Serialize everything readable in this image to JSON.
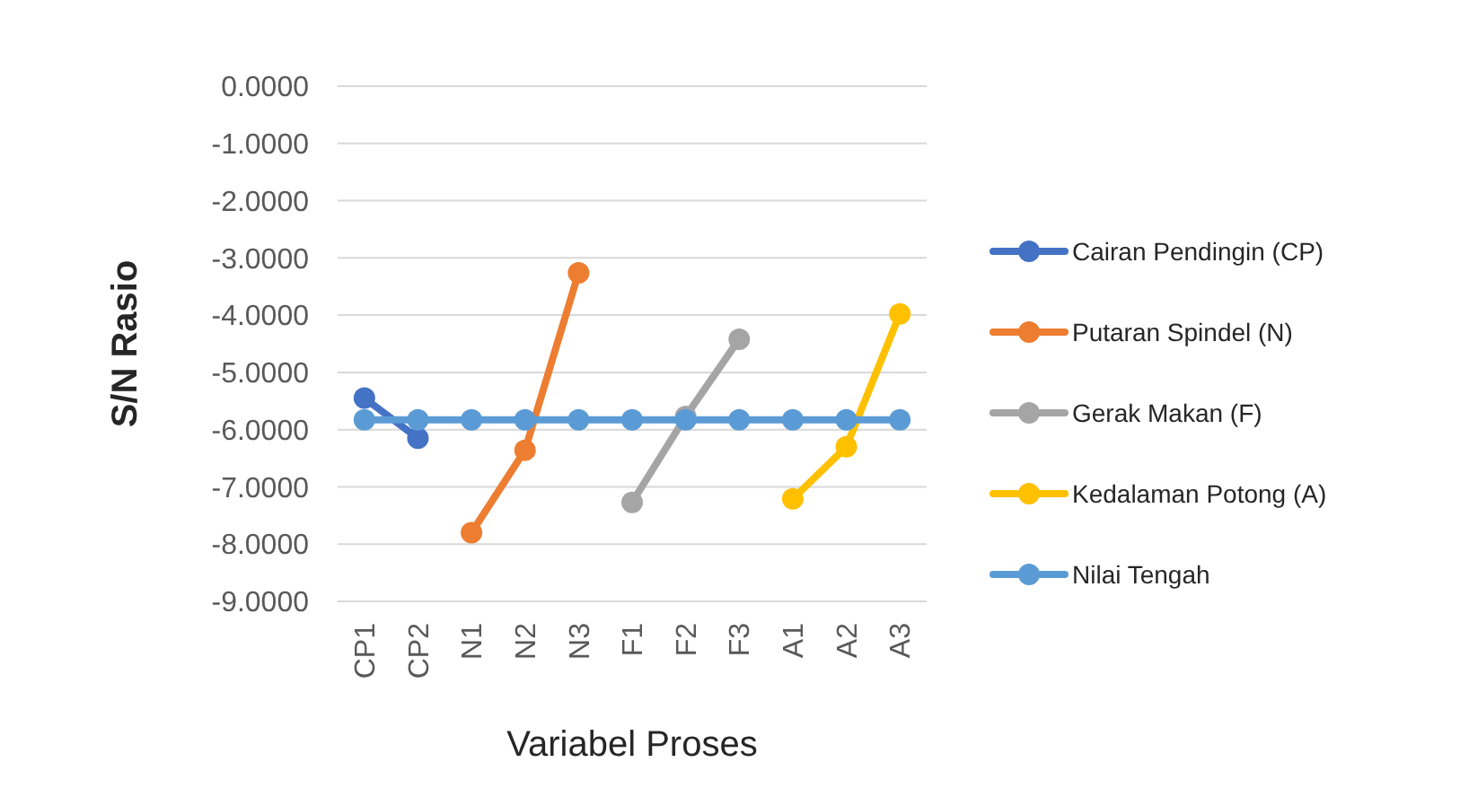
{
  "chart_data": {
    "type": "line",
    "xlabel": "Variabel Proses",
    "ylabel": "S/N Rasio",
    "categories": [
      "CP1",
      "CP2",
      "N1",
      "N2",
      "N3",
      "F1",
      "F2",
      "F3",
      "A1",
      "A2",
      "A3"
    ],
    "series": [
      {
        "name": "Cairan Pendingin (CP)",
        "color": "#4472c4",
        "values": [
          -5.45,
          -6.15,
          null,
          null,
          null,
          null,
          null,
          null,
          null,
          null,
          null
        ]
      },
      {
        "name": "Putaran Spindel (N)",
        "color": "#ed7d31",
        "values": [
          null,
          null,
          -7.8,
          -6.36,
          -3.26,
          null,
          null,
          null,
          null,
          null,
          null
        ]
      },
      {
        "name": "Gerak Makan (F)",
        "color": "#a5a5a5",
        "values": [
          null,
          null,
          null,
          null,
          null,
          -7.27,
          -5.77,
          -4.42,
          null,
          null,
          null
        ]
      },
      {
        "name": "Kedalaman Potong (A)",
        "color": "#ffc000",
        "values": [
          null,
          null,
          null,
          null,
          null,
          null,
          null,
          null,
          -7.21,
          -6.3,
          -3.98
        ]
      },
      {
        "name": "Nilai Tengah",
        "color": "#5b9bd5",
        "values": [
          -5.83,
          -5.83,
          -5.83,
          -5.83,
          -5.83,
          -5.83,
          -5.83,
          -5.83,
          -5.83,
          -5.83,
          -5.83
        ]
      }
    ],
    "ylim": [
      -9,
      0
    ],
    "yticks": [
      {
        "value": 0,
        "label": "0.0000"
      },
      {
        "value": -1,
        "label": "-1.0000"
      },
      {
        "value": -2,
        "label": "-2.0000"
      },
      {
        "value": -3,
        "label": "-3.0000"
      },
      {
        "value": -4,
        "label": "-4.0000"
      },
      {
        "value": -5,
        "label": "-5.0000"
      },
      {
        "value": -6,
        "label": "-6.0000"
      },
      {
        "value": -7,
        "label": "-7.0000"
      },
      {
        "value": -8,
        "label": "-8.0000"
      },
      {
        "value": -9,
        "label": "-9.0000"
      }
    ],
    "grid": "y",
    "legend": "right",
    "marker": "circle",
    "line_style": "solid"
  }
}
